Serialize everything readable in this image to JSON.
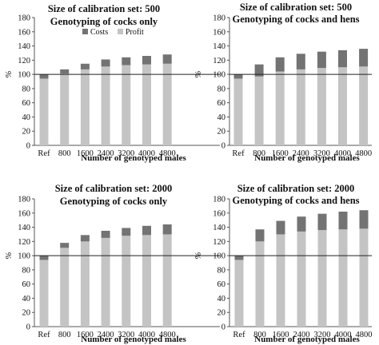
{
  "colors": {
    "profit": "#c4c4c4",
    "costs": "#737373",
    "axis": "#555555",
    "reference_line": "#222222"
  },
  "chart_data": [
    {
      "type": "bar",
      "stacked": true,
      "title": "Size of calibration set: 500",
      "subtitle": "Genotyping of cocks only",
      "xlabel": "Number of genotyped males",
      "ylabel": "%",
      "ylim": [
        0,
        180
      ],
      "yticks": [
        0,
        20,
        40,
        60,
        80,
        100,
        120,
        140,
        160,
        180
      ],
      "reference_line": 100,
      "categories": [
        "Ref",
        "800",
        "1600",
        "2400",
        "3200",
        "4000",
        "4800"
      ],
      "legend": {
        "visible": true,
        "placement": "top-left",
        "entries": [
          "Costs",
          "Profit"
        ]
      },
      "series": [
        {
          "name": "Profit",
          "values": [
            94,
            101,
            107,
            111,
            113,
            114,
            115
          ]
        },
        {
          "name": "Costs",
          "values": [
            6,
            6,
            8,
            10,
            11,
            12,
            13
          ]
        }
      ]
    },
    {
      "type": "bar",
      "stacked": true,
      "title": "Size of calibration set: 500",
      "subtitle": "Genotyping of cocks and hens",
      "xlabel": "Number of genotyped males",
      "ylabel": "%",
      "ylim": [
        0,
        180
      ],
      "yticks": [
        0,
        20,
        40,
        60,
        80,
        100,
        120,
        140,
        160,
        180
      ],
      "reference_line": 100,
      "categories": [
        "Ref",
        "800",
        "1600",
        "2400",
        "3200",
        "4000",
        "4800"
      ],
      "legend": {
        "visible": false
      },
      "series": [
        {
          "name": "Profit",
          "values": [
            94,
            97,
            104,
            107,
            109,
            110,
            111
          ]
        },
        {
          "name": "Costs",
          "values": [
            6,
            17,
            20,
            22,
            23,
            24,
            25
          ]
        }
      ]
    },
    {
      "type": "bar",
      "stacked": true,
      "title": "Size of calibration set: 2000",
      "subtitle": "Genotyping of cocks only",
      "xlabel": "Number of genotyped males",
      "ylabel": "%",
      "ylim": [
        0,
        180
      ],
      "yticks": [
        0,
        20,
        40,
        60,
        80,
        100,
        120,
        140,
        160,
        180
      ],
      "reference_line": 100,
      "categories": [
        "Ref",
        "800",
        "1600",
        "2400",
        "3200",
        "4000",
        "4800"
      ],
      "legend": {
        "visible": false
      },
      "series": [
        {
          "name": "Profit",
          "values": [
            94,
            111,
            120,
            125,
            128,
            129,
            130
          ]
        },
        {
          "name": "Costs",
          "values": [
            6,
            7,
            9,
            10,
            11,
            13,
            14
          ]
        }
      ]
    },
    {
      "type": "bar",
      "stacked": true,
      "title": "Size of calibration set: 2000",
      "subtitle": "Genotyping of cocks and hens",
      "xlabel": "Number of genotyped males",
      "ylabel": "%",
      "ylim": [
        0,
        180
      ],
      "yticks": [
        0,
        20,
        40,
        60,
        80,
        100,
        120,
        140,
        160,
        180
      ],
      "reference_line": 100,
      "categories": [
        "Ref",
        "800",
        "1600",
        "2400",
        "3200",
        "4000",
        "4800"
      ],
      "legend": {
        "visible": false
      },
      "series": [
        {
          "name": "Profit",
          "values": [
            94,
            120,
            130,
            134,
            136,
            137,
            138
          ]
        },
        {
          "name": "Costs",
          "values": [
            6,
            17,
            19,
            21,
            23,
            25,
            26
          ]
        }
      ]
    }
  ]
}
